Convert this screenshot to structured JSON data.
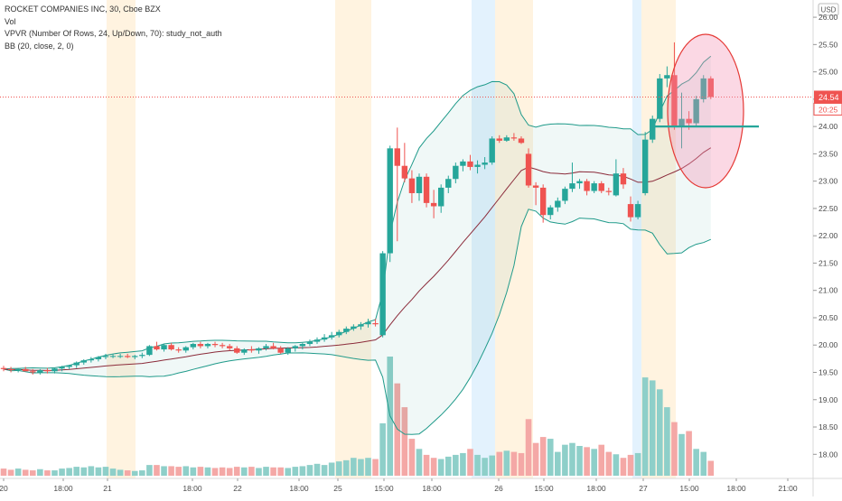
{
  "legend": {
    "symbol_line": "ROCKET COMPANIES INC, 30, Cboe BZX",
    "volume_line": "Vol",
    "vpvr_line": "VPVR (Number Of Rows, 24, Up/Down, 70): study_not_auth",
    "bb_line": "BB (20, close, 2, 0)"
  },
  "chart_data": {
    "type": "candlestick",
    "title": "ROCKET COMPANIES INC, 30, Cboe BZX",
    "currency": "USD",
    "price_ticks": [
      "26.00",
      "25.50",
      "25.00",
      "24.50",
      "24.00",
      "23.50",
      "23.00",
      "22.50",
      "22.00",
      "21.50",
      "21.00",
      "20.50",
      "20.00",
      "19.50",
      "19.00",
      "18.50",
      "18.00"
    ],
    "ylim": [
      17.6,
      26.15
    ],
    "x_ticks": [
      "20",
      "18:00",
      "21",
      "18:00",
      "22",
      "18:00",
      "25",
      "15:00",
      "18:00",
      "26",
      "15:00",
      "18:00",
      "27",
      "15:00",
      "18:00",
      "21:00"
    ],
    "price_label": "24.54",
    "countdown_label": "20:25",
    "last_price": 24.54,
    "colors": {
      "up": "#26a69a",
      "down": "#ef5350",
      "volume_up": "#8ecfc9",
      "volume_down": "#f4a8a6",
      "bb_band": "#1f9a8a",
      "bb_basis": "#8b2b3a",
      "extended_hours": "#fff3e0",
      "premarket_blue": "#e3f2fd",
      "highlight_fill": "#f48fb1",
      "highlight_stroke": "#e53935",
      "support_line": "#26a69a"
    },
    "candles": [
      [
        19.58,
        19.62,
        19.52,
        19.56
      ],
      [
        19.56,
        19.6,
        19.5,
        19.54
      ],
      [
        19.54,
        19.58,
        19.5,
        19.56
      ],
      [
        19.56,
        19.6,
        19.52,
        19.52
      ],
      [
        19.52,
        19.56,
        19.46,
        19.5
      ],
      [
        19.5,
        19.56,
        19.46,
        19.54
      ],
      [
        19.54,
        19.58,
        19.48,
        19.52
      ],
      [
        19.52,
        19.58,
        19.48,
        19.57
      ],
      [
        19.57,
        19.62,
        19.52,
        19.6
      ],
      [
        19.6,
        19.64,
        19.56,
        19.63
      ],
      [
        19.63,
        19.7,
        19.58,
        19.68
      ],
      [
        19.68,
        19.74,
        19.64,
        19.72
      ],
      [
        19.72,
        19.78,
        19.68,
        19.74
      ],
      [
        19.74,
        19.8,
        19.7,
        19.78
      ],
      [
        19.78,
        19.84,
        19.74,
        19.8
      ],
      [
        19.8,
        19.84,
        19.76,
        19.8
      ],
      [
        19.8,
        19.84,
        19.76,
        19.8
      ],
      [
        19.8,
        19.84,
        19.76,
        19.78
      ],
      [
        19.78,
        19.82,
        19.74,
        19.8
      ],
      [
        19.8,
        19.86,
        19.76,
        19.82
      ],
      [
        19.82,
        20.0,
        19.8,
        19.98
      ],
      [
        19.98,
        20.06,
        19.9,
        19.92
      ],
      [
        19.92,
        20.02,
        19.88,
        20.0
      ],
      [
        20.0,
        20.04,
        19.9,
        19.92
      ],
      [
        19.92,
        19.96,
        19.86,
        19.9
      ],
      [
        19.9,
        19.98,
        19.86,
        19.96
      ],
      [
        19.96,
        20.04,
        19.92,
        20.02
      ],
      [
        20.02,
        20.06,
        19.94,
        19.98
      ],
      [
        19.98,
        20.04,
        19.94,
        20.02
      ],
      [
        20.02,
        20.06,
        19.96,
        20.0
      ],
      [
        20.0,
        20.04,
        19.94,
        19.98
      ],
      [
        19.98,
        20.02,
        19.9,
        19.94
      ],
      [
        19.94,
        19.98,
        19.84,
        19.86
      ],
      [
        19.86,
        19.94,
        19.82,
        19.92
      ],
      [
        19.92,
        19.98,
        19.86,
        19.9
      ],
      [
        19.9,
        19.96,
        19.84,
        19.94
      ],
      [
        19.94,
        20.02,
        19.9,
        19.98
      ],
      [
        19.98,
        20.04,
        19.92,
        19.94
      ],
      [
        19.94,
        19.98,
        19.84,
        19.86
      ],
      [
        19.86,
        19.96,
        19.82,
        19.94
      ],
      [
        19.94,
        20.0,
        19.88,
        19.98
      ],
      [
        19.98,
        20.04,
        19.92,
        20.02
      ],
      [
        20.02,
        20.1,
        19.98,
        20.06
      ],
      [
        20.06,
        20.14,
        20.02,
        20.1
      ],
      [
        20.1,
        20.2,
        20.06,
        20.14
      ],
      [
        20.14,
        20.24,
        20.1,
        20.18
      ],
      [
        20.18,
        20.28,
        20.14,
        20.24
      ],
      [
        20.24,
        20.34,
        20.2,
        20.3
      ],
      [
        20.3,
        20.38,
        20.26,
        20.34
      ],
      [
        20.34,
        20.42,
        20.28,
        20.38
      ],
      [
        20.38,
        20.48,
        20.32,
        20.42
      ],
      [
        20.4,
        20.48,
        20.34,
        20.38
      ],
      [
        20.18,
        21.72,
        20.14,
        21.68
      ],
      [
        21.68,
        23.65,
        21.52,
        23.6
      ],
      [
        23.6,
        23.98,
        21.9,
        23.28
      ],
      [
        23.28,
        23.7,
        22.98,
        23.05
      ],
      [
        23.05,
        23.2,
        22.6,
        22.78
      ],
      [
        22.78,
        23.14,
        22.64,
        23.08
      ],
      [
        23.08,
        23.14,
        22.52,
        22.6
      ],
      [
        22.6,
        22.84,
        22.32,
        22.54
      ],
      [
        22.54,
        22.94,
        22.42,
        22.88
      ],
      [
        22.88,
        23.1,
        22.78,
        23.04
      ],
      [
        23.04,
        23.34,
        22.96,
        23.28
      ],
      [
        23.28,
        23.4,
        23.18,
        23.36
      ],
      [
        23.36,
        23.48,
        23.2,
        23.26
      ],
      [
        23.26,
        23.38,
        23.14,
        23.3
      ],
      [
        23.3,
        23.44,
        23.22,
        23.34
      ],
      [
        23.34,
        23.82,
        23.3,
        23.78
      ],
      [
        23.78,
        23.84,
        23.7,
        23.74
      ],
      [
        23.74,
        23.84,
        23.72,
        23.8
      ],
      [
        23.8,
        23.88,
        23.74,
        23.78
      ],
      [
        23.78,
        23.82,
        23.68,
        23.7
      ],
      [
        23.5,
        23.6,
        22.88,
        22.92
      ],
      [
        22.92,
        22.98,
        22.56,
        22.88
      ],
      [
        22.88,
        22.94,
        22.24,
        22.38
      ],
      [
        22.38,
        22.56,
        22.3,
        22.52
      ],
      [
        22.52,
        22.7,
        22.44,
        22.64
      ],
      [
        22.64,
        22.9,
        22.58,
        22.86
      ],
      [
        22.86,
        23.34,
        22.8,
        22.96
      ],
      [
        22.96,
        23.04,
        22.86,
        23.0
      ],
      [
        23.0,
        23.04,
        22.74,
        22.82
      ],
      [
        22.82,
        23.0,
        22.78,
        22.96
      ],
      [
        22.96,
        23.0,
        22.78,
        22.82
      ],
      [
        22.82,
        22.88,
        22.74,
        22.8
      ],
      [
        22.74,
        23.4,
        22.72,
        23.14
      ],
      [
        23.14,
        23.24,
        22.86,
        22.94
      ],
      [
        22.58,
        22.72,
        22.26,
        22.34
      ],
      [
        22.34,
        22.64,
        22.3,
        22.58
      ],
      [
        22.78,
        23.9,
        22.74,
        23.76
      ],
      [
        23.76,
        24.2,
        23.7,
        24.14
      ],
      [
        24.14,
        24.96,
        24.08,
        24.88
      ],
      [
        24.88,
        25.1,
        24.72,
        24.94
      ],
      [
        24.94,
        25.54,
        23.94,
        24.0
      ],
      [
        24.0,
        24.62,
        23.6,
        24.14
      ],
      [
        24.14,
        24.28,
        23.94,
        24.06
      ],
      [
        24.06,
        24.56,
        24.0,
        24.5
      ],
      [
        24.5,
        24.94,
        24.44,
        24.88
      ],
      [
        24.88,
        24.92,
        24.5,
        24.54
      ]
    ],
    "volumes": [
      12,
      10,
      12,
      10,
      9,
      11,
      9,
      9,
      12,
      13,
      15,
      14,
      16,
      14,
      15,
      12,
      10,
      9,
      8,
      9,
      18,
      18,
      16,
      16,
      15,
      16,
      14,
      15,
      14,
      13,
      14,
      13,
      15,
      14,
      15,
      13,
      15,
      14,
      14,
      13,
      15,
      16,
      18,
      20,
      18,
      22,
      24,
      26,
      30,
      28,
      30,
      28,
      88,
      200,
      155,
      115,
      62,
      45,
      35,
      30,
      28,
      32,
      35,
      38,
      45,
      35,
      30,
      34,
      40,
      42,
      40,
      38,
      95,
      55,
      65,
      62,
      40,
      52,
      55,
      50,
      48,
      45,
      52,
      40,
      36,
      30,
      35,
      38,
      165,
      160,
      145,
      115,
      90,
      70,
      75,
      45,
      40,
      25
    ],
    "volume_max": 200
  }
}
